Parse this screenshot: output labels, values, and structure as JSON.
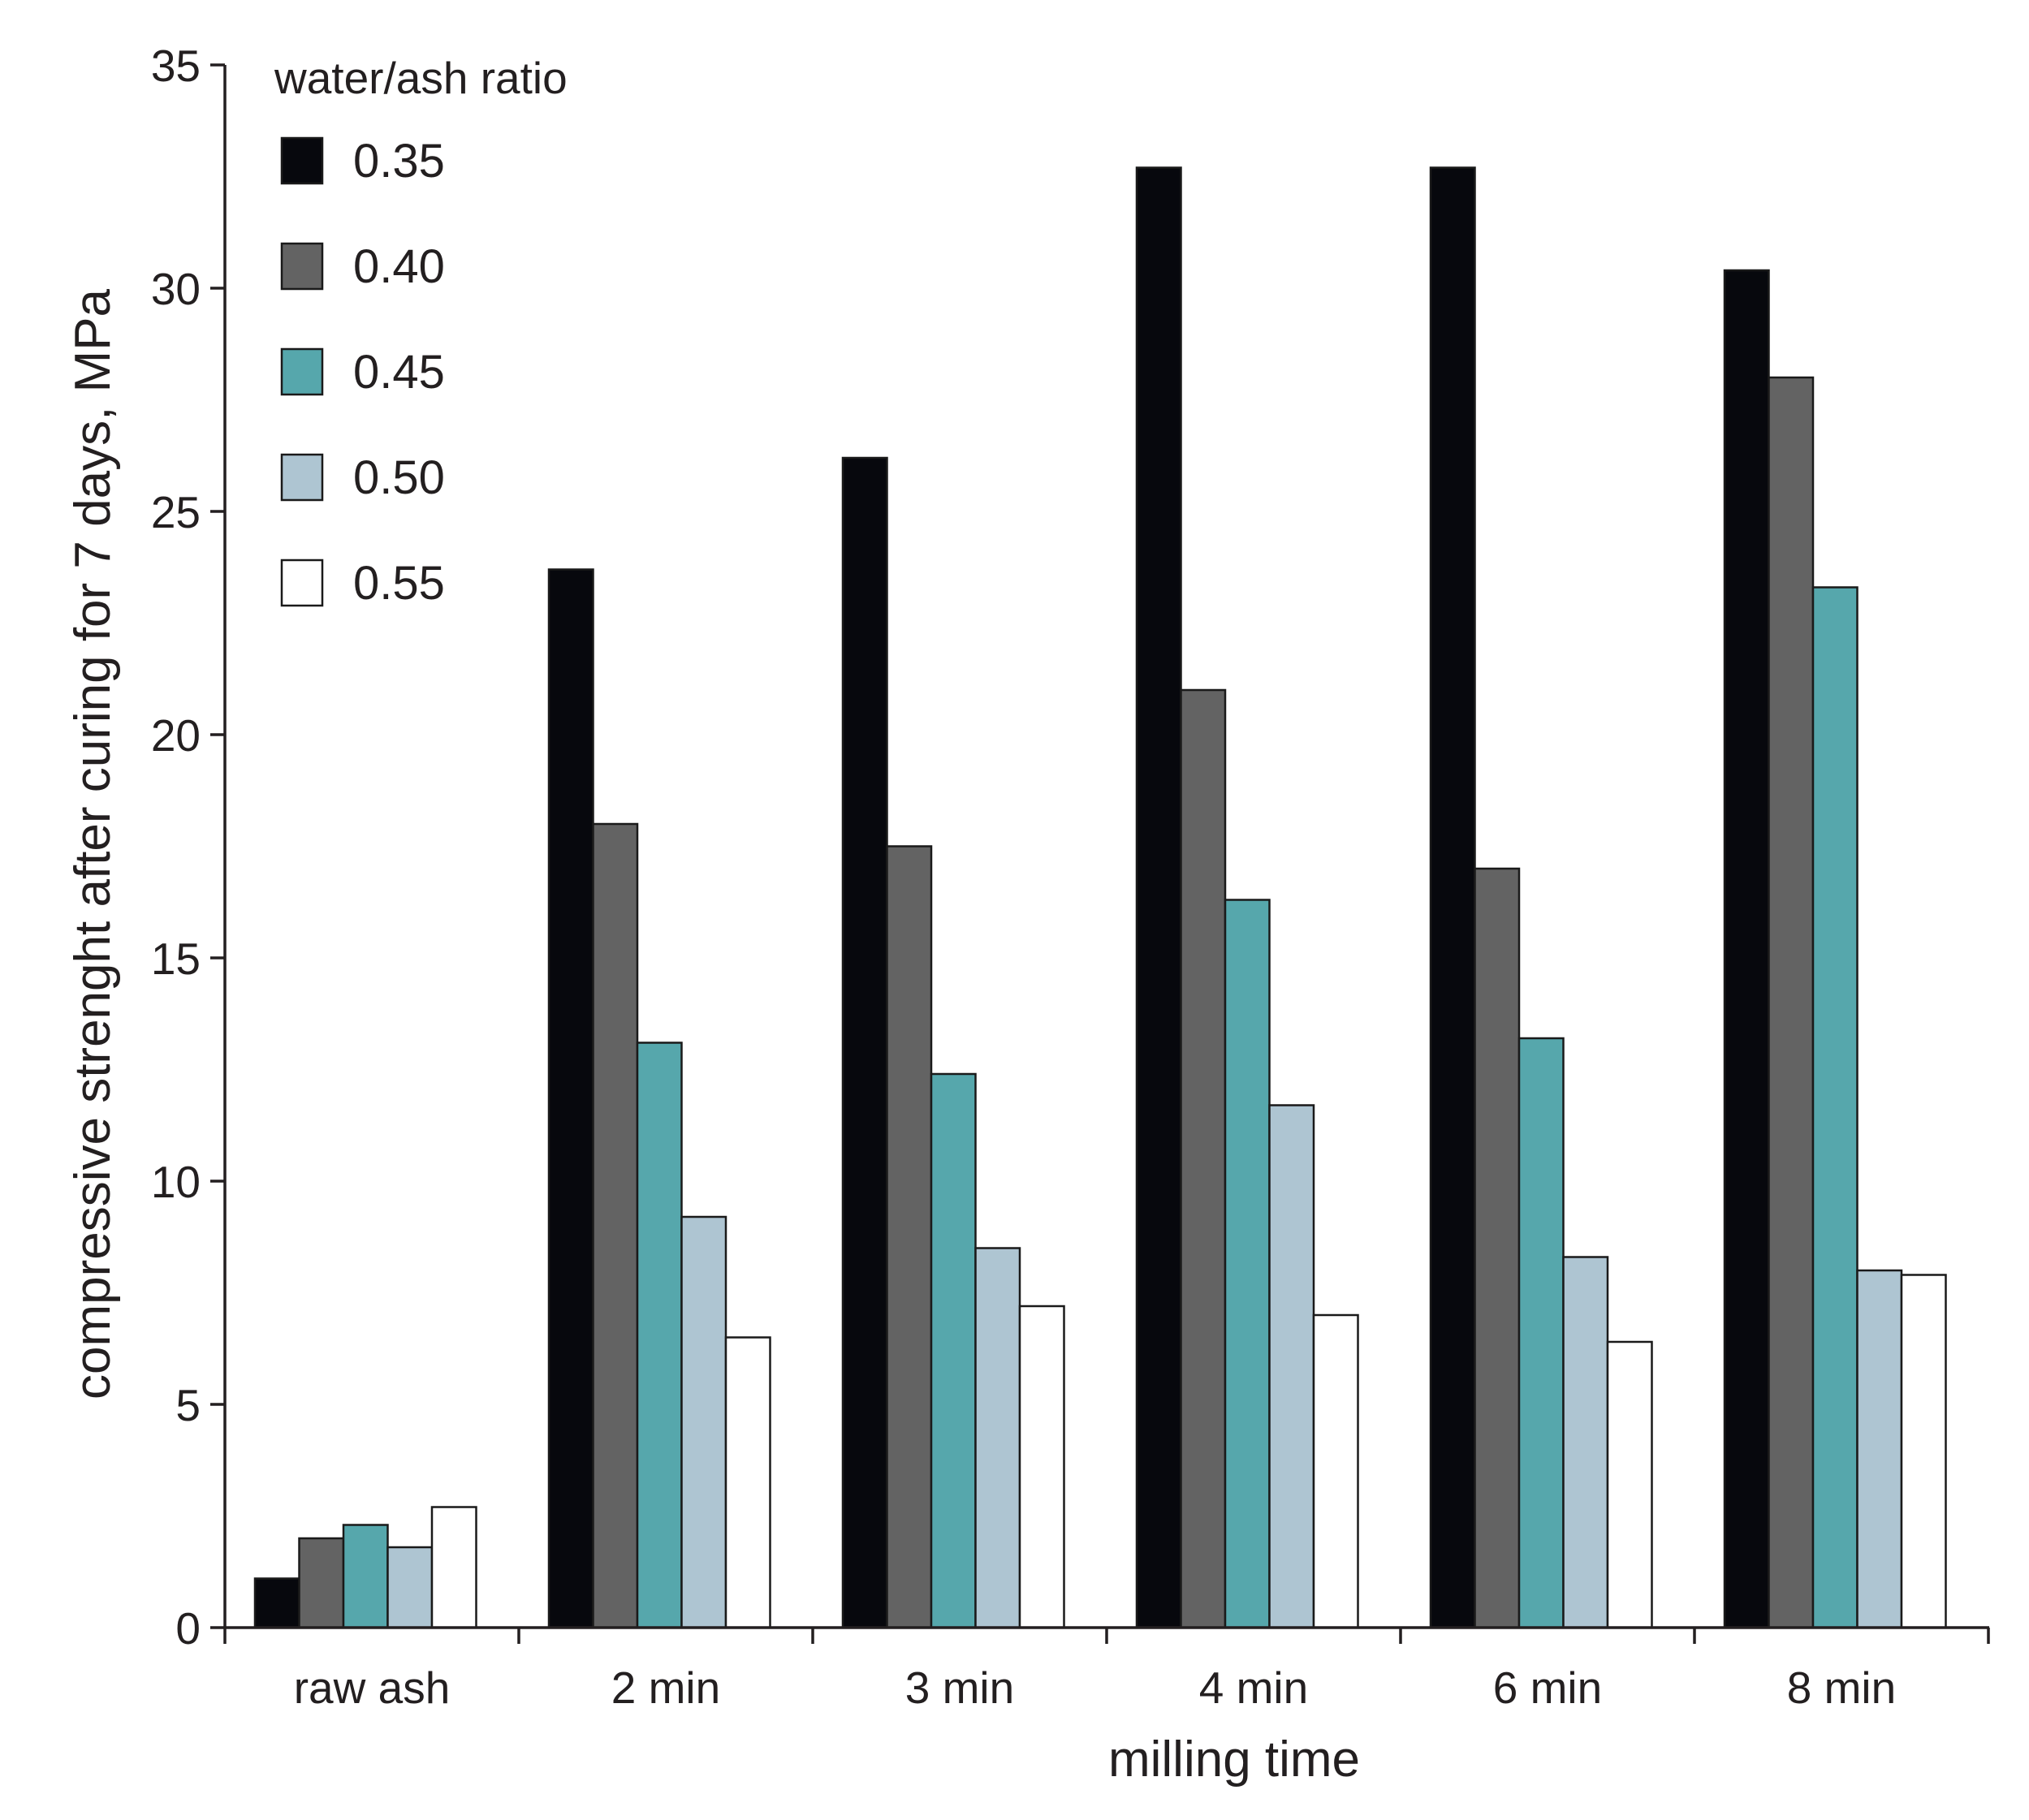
{
  "chart_data": {
    "type": "bar",
    "title": "",
    "xlabel": "milling time",
    "ylabel": "compressive strenght after curing for 7 days, MPa",
    "ylim": [
      0,
      35
    ],
    "yticks": [
      0,
      5,
      10,
      15,
      20,
      25,
      30,
      35
    ],
    "ytick_labels": [
      "0",
      "5",
      "10",
      "15",
      "20",
      "25",
      "30",
      "35"
    ],
    "grid": false,
    "categories": [
      "raw ash",
      "2 min",
      "3 min",
      "4 min",
      "6 min",
      "8 min"
    ],
    "legend": {
      "title": "water/ash ratio",
      "position": "top-left"
    },
    "series": [
      {
        "name": "0.35",
        "color": "#07080d",
        "values": [
          1.1,
          23.7,
          26.2,
          32.7,
          32.7,
          30.4
        ]
      },
      {
        "name": "0.40",
        "color": "#636363",
        "values": [
          2.0,
          18.0,
          17.5,
          21.0,
          17.0,
          28.0
        ]
      },
      {
        "name": "0.45",
        "color": "#56a7ac",
        "values": [
          2.3,
          13.1,
          12.4,
          16.3,
          13.2,
          23.3
        ]
      },
      {
        "name": "0.50",
        "color": "#aec5d2",
        "values": [
          1.8,
          9.2,
          8.5,
          11.7,
          8.3,
          8.0
        ]
      },
      {
        "name": "0.55",
        "color": "#ffffff",
        "values": [
          2.7,
          6.5,
          7.2,
          7.0,
          6.4,
          7.9
        ]
      }
    ]
  }
}
